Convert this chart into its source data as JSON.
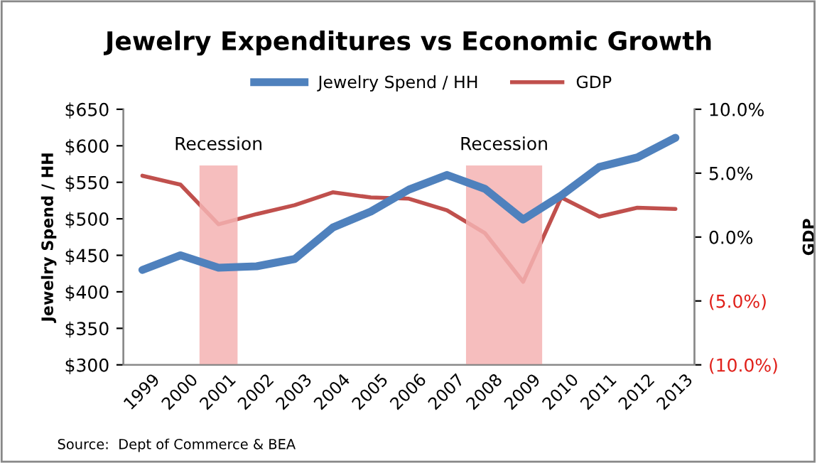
{
  "chart_data": {
    "type": "line",
    "title": "Jewelry Expenditures vs Economic Growth",
    "ylabel": "Jewelry Spend / HH",
    "y2label": "GDP",
    "categories": [
      "1999",
      "2000",
      "2001",
      "2002",
      "2003",
      "2004",
      "2005",
      "2006",
      "2007",
      "2008",
      "2009",
      "2010",
      "2011",
      "2012",
      "2013"
    ],
    "series": [
      {
        "name": "Jewelry Spend / HH",
        "color": "#4f81bd",
        "values": [
          430,
          450,
          433,
          435,
          445,
          488,
          510,
          540,
          560,
          541,
          499,
          532,
          571,
          584,
          611
        ]
      },
      {
        "name": "GDP",
        "color": "#c0504d",
        "axis": "y2",
        "values": [
          4.8,
          4.1,
          1.0,
          1.8,
          2.5,
          3.5,
          3.1,
          3.0,
          2.1,
          0.3,
          -3.5,
          3.1,
          1.6,
          2.3,
          2.2
        ]
      }
    ],
    "ylim": [
      300,
      650
    ],
    "yticks": [
      {
        "value": 300,
        "label": "$300"
      },
      {
        "value": 350,
        "label": "$350"
      },
      {
        "value": 400,
        "label": "$400"
      },
      {
        "value": 450,
        "label": "$450"
      },
      {
        "value": 500,
        "label": "$500"
      },
      {
        "value": 550,
        "label": "$550"
      },
      {
        "value": 600,
        "label": "$600"
      },
      {
        "value": 650,
        "label": "$650"
      }
    ],
    "y2lim": [
      -10,
      10
    ],
    "y2ticks": [
      {
        "value": -10,
        "label": "(10.0%)"
      },
      {
        "value": -5,
        "label": "(5.0%)"
      },
      {
        "value": 0,
        "label": "0.0%"
      },
      {
        "value": 5,
        "label": "5.0%"
      },
      {
        "value": 10,
        "label": "10.0%"
      }
    ],
    "bands": [
      {
        "axis": "x",
        "from": "2001",
        "to": "2001",
        "label": "Recession",
        "color": "#f4b3b3"
      },
      {
        "axis": "x",
        "from": "2008",
        "to": "2009",
        "label": "Recession",
        "color": "#f4b3b3"
      }
    ],
    "annotations": [
      "Source:  Dept of Commerce & BEA"
    ],
    "legend": "top",
    "grid": false,
    "marker": "none",
    "line_style": "solid"
  }
}
